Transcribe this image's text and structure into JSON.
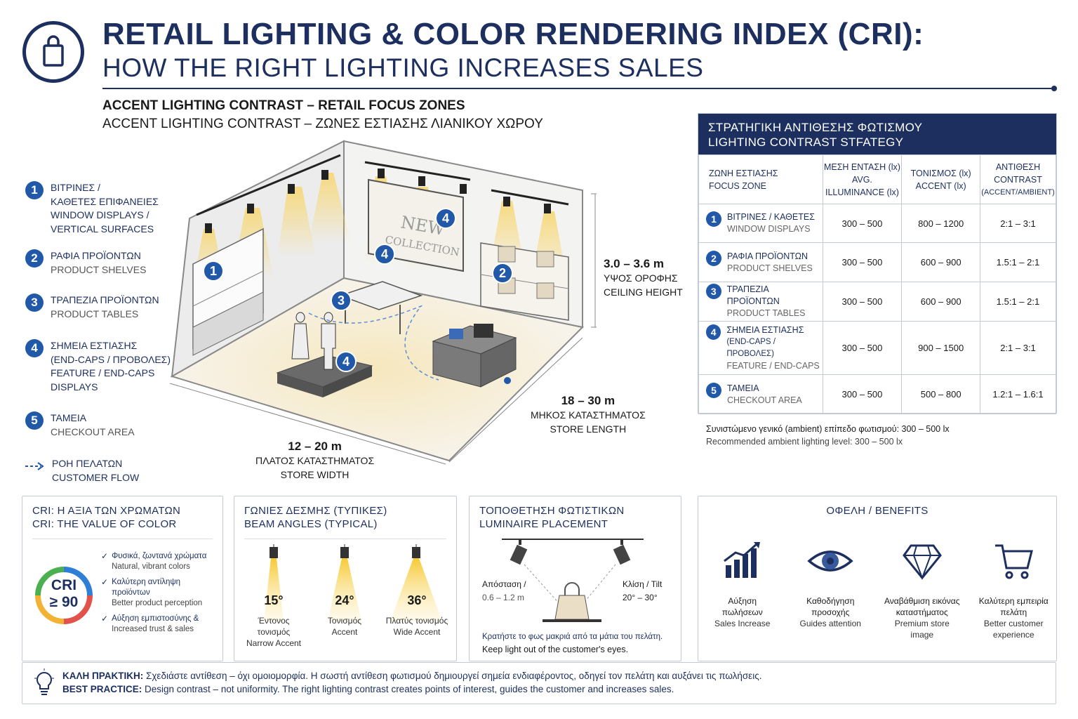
{
  "header": {
    "title_line1": "RETAIL LIGHTING & COLOR RENDERING INDEX (CRI):",
    "title_line2": "HOW THE RIGHT LIGHTING INCREASES SALES",
    "subtitle_en": "ACCENT LIGHTING CONTRAST – RETAIL FOCUS ZONES",
    "subtitle_gr": "ACCENT LIGHTING CONTRAST – ΖΩΝΕΣ ΕΣΤΙΑΣΗΣ ΛΙΑΝΙΚΟΥ ΧΩΡΟΥ",
    "logo_icon": "shopping-bag-icon"
  },
  "legend": [
    {
      "num": "1",
      "lines": [
        "ΒΙΤΡΙΝΕΣ /",
        "ΚΑΘΕΤΕΣ ΕΠΙΦΑΝΕΙΕΣ",
        "WINDOW DISPLAYS /",
        "VERTICAL SURFACES"
      ]
    },
    {
      "num": "2",
      "lines": [
        "ΡΑΦΙΑ ΠΡΟΪΟΝΤΩΝ",
        "PRODUCT SHELVES"
      ]
    },
    {
      "num": "3",
      "lines": [
        "ΤΡΑΠΕΖΙΑ ΠΡΟΪΟΝΤΩΝ",
        "PRODUCT TABLES"
      ]
    },
    {
      "num": "4",
      "lines": [
        "ΣΗΜΕΙΑ ΕΣΤΙΑΣΗΣ",
        "(END-CAPS / ΠΡΟΒΟΛΕΣ)",
        "FEATURE / END-CAPS",
        "DISPLAYS"
      ]
    },
    {
      "num": "5",
      "lines": [
        "ΤΑΜΕΙΑ",
        "CHECKOUT AREA"
      ]
    },
    {
      "num": "",
      "lines": [
        "ΡΟΗ ΠΕΛΑΤΩΝ",
        "CUSTOMER FLOW"
      ]
    }
  ],
  "store": {
    "sign_line1": "NEW",
    "sign_line2": "COLLECTION",
    "ceiling_value": "3.0 – 3.6 m",
    "ceiling_gr": "ΥΨΟΣ ΟΡΟΦΗΣ",
    "ceiling_en": "CEILING HEIGHT",
    "length_value": "18 – 30 m",
    "length_gr": "ΜΗΚΟΣ ΚΑΤΑΣΤΗΜΑΤΟΣ",
    "length_en": "STORE LENGTH",
    "width_value": "12 – 20 m",
    "width_gr": "ΠΛΑΤΟΣ ΚΑΤΑΣΤΗΜΑΤΟΣ",
    "width_en": "STORE WIDTH",
    "markers": [
      "1",
      "2",
      "3",
      "4",
      "4",
      "4"
    ]
  },
  "strategy": {
    "title_gr": "ΣΤΡΑΤΗΓΙΚΗ ΑΝΤΙΘΕΣΗΣ ΦΩΤΙΣΜΟΥ",
    "title_en": "LIGHTING CONTRAST STFATEGY",
    "columns": [
      [
        "ΖΩΝΗ ΕΣΤΙΑΣΗΣ",
        "FOCUS ZONE"
      ],
      [
        "ΜΕΣΗ ΕΝΤΑΣΗ (lx)",
        "AVG. ILLUMINANCE (lx)"
      ],
      [
        "ΤΟΝΙΣΜΟΣ (lx)",
        "ACCENT (lx)"
      ],
      [
        "ΑΝΤΙΘΕΣΗ",
        "CONTRAST",
        "(ACCENT/AMBIENT)"
      ]
    ],
    "rows": [
      {
        "num": "1",
        "gr": [
          "ΒΙΤΡΙΝΕΣ / ΚΑΘΕΤΕΣ"
        ],
        "en": "WINDOW DISPLAYS",
        "avg": "300 – 500",
        "accent": "800 – 1200",
        "contrast": "2:1 – 3:1"
      },
      {
        "num": "2",
        "gr": [
          "ΡΑΦΙΑ ΠΡΟΪΟΝΤΩΝ"
        ],
        "en": "PRODUCT SHELVES",
        "avg": "300 – 500",
        "accent": "600 – 900",
        "contrast": "1.5:1 – 2:1"
      },
      {
        "num": "3",
        "gr": [
          "ΤΡΑΠΕΖΙΑ ΠΡΟΪΟΝΤΩΝ"
        ],
        "en": "PRODUCT TABLES",
        "avg": "300 – 500",
        "accent": "600 – 900",
        "contrast": "1.5:1 – 2:1"
      },
      {
        "num": "4",
        "gr": [
          "ΣΗΜΕΙΑ ΕΣΤΙΑΣΗΣ",
          "(END-CAPS / ΠΡΟΒΟΛΕΣ)"
        ],
        "en": "FEATURE / END-CAPS",
        "avg": "300 – 500",
        "accent": "900 – 1500",
        "contrast": "2:1 – 3:1"
      },
      {
        "num": "5",
        "gr": [
          "ΤΑΜΕΙΑ"
        ],
        "en": "CHECKOUT AREA",
        "avg": "300 – 500",
        "accent": "500 – 800",
        "contrast": "1.2:1 – 1.6:1"
      }
    ],
    "ambient_gr": "Συνιστώμενο γενικό (ambient) επίπεδο φωτισμού: 300 – 500 lx",
    "ambient_en": "Recommended ambient lighting level: 300 – 500 lx"
  },
  "cri_card": {
    "title_gr": "CRI: Η ΑΞΙΑ ΤΩΝ ΧΡΩΜΑΤΩΝ",
    "title_en": "CRI: THE VALUE OF COLOR",
    "badge_top": "CRI",
    "badge_bottom": "≥ 90",
    "items": [
      {
        "gr": "Φυσικά, ζωντανά χρώματα",
        "en": "Natural, vibrant colors"
      },
      {
        "gr": "Καλύτερη αντίληψη προϊόντων",
        "en": "Better product perception"
      },
      {
        "gr": "Αύξηση εμπιστοσύνης &",
        "en": "Increased trust & sales"
      }
    ]
  },
  "beam_card": {
    "title_gr": "ΓΩΝΙΕΣ ΔΕΣΜΗΣ (ΤΥΠΙΚΕΣ)",
    "title_en": "BEAM ANGLES (TYPICAL)",
    "beams": [
      {
        "angle": "15°",
        "gr": "Έντονος τονισμός",
        "en": "Narrow Accent"
      },
      {
        "angle": "24°",
        "gr": "Τονισμός",
        "en": "Accent"
      },
      {
        "angle": "36°",
        "gr": "Πλατύς τονισμός",
        "en": "Wide Accent"
      }
    ]
  },
  "placement_card": {
    "title_gr": "ΤΟΠΟΘΕΤΗΣΗ ΦΩΤΙΣΤΙΚΩΝ",
    "title_en": "LUMINAIRE PLACEMENT",
    "distance_label": "Απόσταση /",
    "distance_value": "0.6 – 1.2 m",
    "tilt_label": "Κλίση / Tilt",
    "tilt_value": "20° – 30°",
    "note_gr": "Κρατήστε το φως μακριά από τα μάτια του πελάτη.",
    "note_en": "Keep light out of the customer's eyes."
  },
  "benefits_card": {
    "title": "ΟΦΕΛΗ / BENEFITS",
    "items": [
      {
        "icon": "growth-chart-icon",
        "gr": [
          "Αύξηση",
          "πωλήσεων"
        ],
        "en": [
          "Sales Increase"
        ]
      },
      {
        "icon": "eye-icon",
        "gr": [
          "Καθοδήγηση",
          "προσοχής"
        ],
        "en": [
          "Guides attention"
        ]
      },
      {
        "icon": "diamond-icon",
        "gr": [
          "Αναβάθμιση εικόνας",
          "καταστήματος"
        ],
        "en": [
          "Premium store",
          "image"
        ]
      },
      {
        "icon": "shopping-cart-icon",
        "gr": [
          "Καλύτερη εμπειρία",
          "πελάτη"
        ],
        "en": [
          "Better customer",
          "experience"
        ]
      }
    ]
  },
  "best_practice": {
    "label_gr": "ΚΑΛΗ ΠΡΑΚΤΙΚΗ:",
    "text_gr": " Σχεδιάστε αντίθεση – όχι ομοιομορφία. Η σωστή αντίθεση φωτισμού δημιουργεί σημεία ενδιαφέροντος, οδηγεί τον πελάτη και αυξάνει τις πωλήσεις.",
    "label_en": "BEST PRACTICE:",
    "text_en": " Design contrast – not uniformity. The right lighting contrast creates points of interest, guides the customer and increases sales.",
    "icon": "lightbulb-icon"
  },
  "colors": {
    "navy": "#1c2f5e",
    "accent_blue": "#2158a8",
    "light_beam": "#f7d774"
  }
}
